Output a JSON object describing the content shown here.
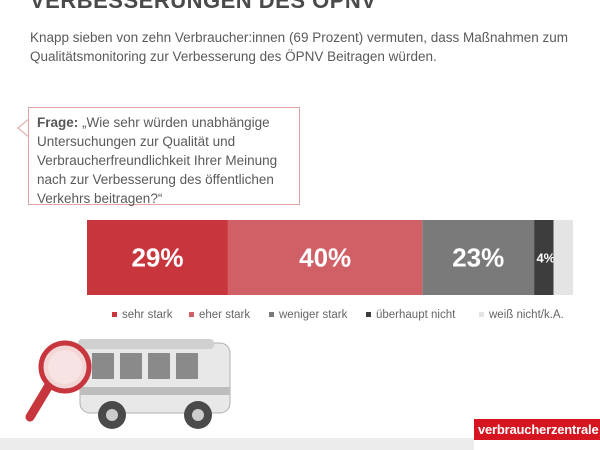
{
  "header": {
    "title": "VERBESSERUNGEN DES ÖPNV",
    "subtitle": "Knapp sieben von zehn Verbraucher:innen (69 Prozent) vermuten, dass Maßnahmen zum Qualitätsmonitoring zur Verbesserung des ÖPNV Beitragen würden."
  },
  "question": {
    "label": "Frage:",
    "text": "„Wie sehr würden unabhängige Untersuchungen zur Qualität und Verbraucherfreundlichkeit Ihrer Meinung nach zur Verbesserung des öffentlichen Verkehrs beitragen?“"
  },
  "chart_data": {
    "type": "bar",
    "orientation": "horizontal-stacked",
    "categories": [
      "sehr stark",
      "eher stark",
      "weniger stark",
      "überhaupt nicht",
      "weiß nicht/k.A."
    ],
    "values": [
      29,
      40,
      23,
      4,
      4
    ],
    "data_labels": [
      "29%",
      "40%",
      "23%",
      "4%",
      ""
    ],
    "colors": [
      "#c8363d",
      "#d16066",
      "#7a7a7a",
      "#3d3d3d",
      "#e4e4e4"
    ],
    "legend_position": "bottom",
    "unit": "%"
  },
  "logo": {
    "text": "verbraucherzentrale"
  },
  "icons": [
    "magnifier-icon",
    "bus-icon"
  ]
}
